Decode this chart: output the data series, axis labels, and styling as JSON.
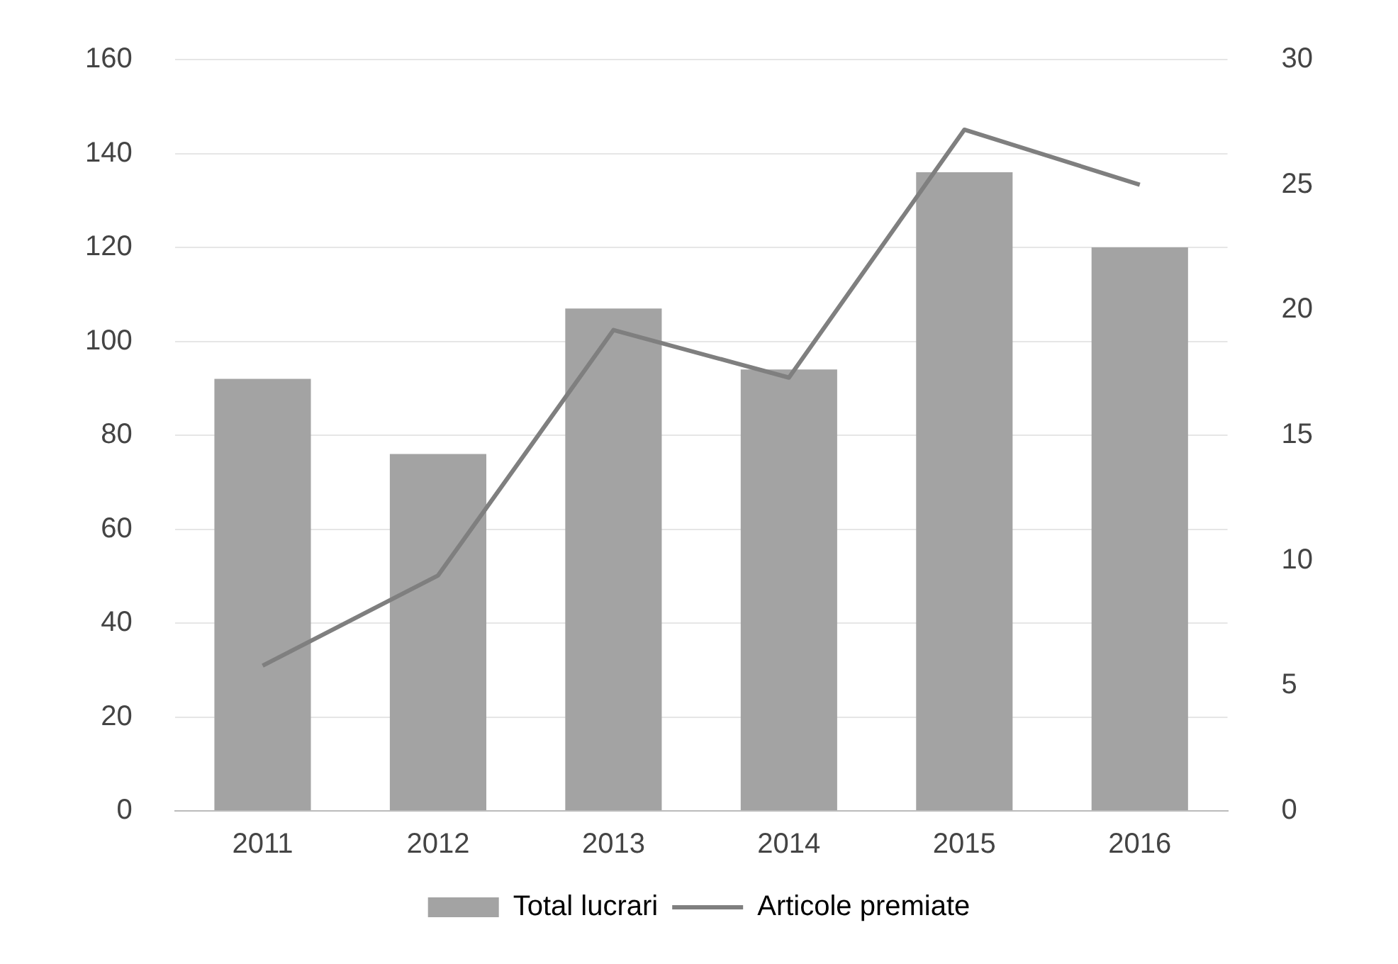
{
  "chart_data": {
    "type": "bar",
    "categories": [
      "2011",
      "2012",
      "2013",
      "2014",
      "2015",
      "2016"
    ],
    "series": [
      {
        "name": "Total lucrari",
        "color": "#a3a3a3",
        "values": [
          92,
          76,
          107,
          94,
          136,
          120
        ]
      },
      {
        "name": "Articole premiate",
        "type": "line",
        "axis": "y2",
        "color": "#7f7f7f",
        "values": [
          5.8,
          9.4,
          19.2,
          17.3,
          27.2,
          25.0
        ]
      }
    ],
    "ylim": [
      0,
      160
    ],
    "yticks": [
      0,
      20,
      40,
      60,
      80,
      100,
      120,
      140,
      160
    ],
    "y2lim": [
      0,
      30
    ],
    "y2ticks": [
      0,
      5,
      10,
      15,
      20,
      25,
      30
    ],
    "grid": "y",
    "legend": "bottom",
    "marker": "none",
    "line_style": "solid"
  }
}
